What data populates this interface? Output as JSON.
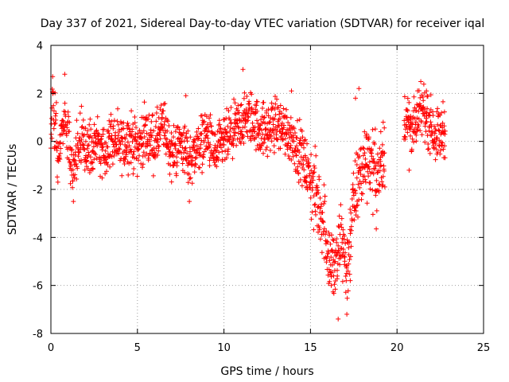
{
  "chart_data": {
    "type": "scatter",
    "title": "Day 337 of 2021, Sidereal Day-to-day VTEC variation (SDTVAR) for receiver iqal",
    "xlabel": "GPS time / hours",
    "ylabel": "SDTVAR / TECUs",
    "xlim": [
      0,
      25
    ],
    "ylim": [
      -8,
      4
    ],
    "xticks": [
      0,
      5,
      10,
      15,
      20,
      25
    ],
    "yticks": [
      4,
      2,
      0,
      -2,
      -4,
      -6,
      -8
    ],
    "xtick_labels": [
      "0",
      "5",
      "10",
      "15",
      "20",
      "25"
    ],
    "ytick_labels": [
      "4",
      "2",
      "0",
      "-2",
      "-4",
      "-6",
      "-8"
    ],
    "grid": true,
    "marker": "+",
    "color": "#ff0000",
    "series": [
      {
        "name": "iqal",
        "trend": [
          {
            "x": 0.0,
            "y": 0.3
          },
          {
            "x": 0.1,
            "y": 1.6
          },
          {
            "x": 0.2,
            "y": 0.9
          },
          {
            "x": 0.3,
            "y": 0.2
          },
          {
            "x": 0.4,
            "y": -0.6
          },
          {
            "x": 0.6,
            "y": 0.5
          },
          {
            "x": 0.8,
            "y": 1.0
          },
          {
            "x": 1.0,
            "y": 0.3
          },
          {
            "x": 1.2,
            "y": -1.2
          },
          {
            "x": 1.5,
            "y": -0.5
          },
          {
            "x": 1.8,
            "y": 0.2
          },
          {
            "x": 2.2,
            "y": -0.4
          },
          {
            "x": 2.6,
            "y": 0.1
          },
          {
            "x": 3.0,
            "y": -0.6
          },
          {
            "x": 3.5,
            "y": 0.2
          },
          {
            "x": 4.0,
            "y": -0.3
          },
          {
            "x": 4.5,
            "y": 0.1
          },
          {
            "x": 5.0,
            "y": -0.2
          },
          {
            "x": 5.5,
            "y": 0.3
          },
          {
            "x": 6.0,
            "y": -0.1
          },
          {
            "x": 6.5,
            "y": 0.7
          },
          {
            "x": 7.0,
            "y": -0.6
          },
          {
            "x": 7.5,
            "y": 0.0
          },
          {
            "x": 8.0,
            "y": -0.8
          },
          {
            "x": 8.5,
            "y": -0.2
          },
          {
            "x": 9.0,
            "y": 0.3
          },
          {
            "x": 9.5,
            "y": -0.6
          },
          {
            "x": 10.0,
            "y": 0.0
          },
          {
            "x": 10.5,
            "y": 0.3
          },
          {
            "x": 11.0,
            "y": 0.8
          },
          {
            "x": 11.5,
            "y": 1.0
          },
          {
            "x": 12.0,
            "y": 0.6
          },
          {
            "x": 12.5,
            "y": 0.4
          },
          {
            "x": 13.0,
            "y": 0.8
          },
          {
            "x": 13.5,
            "y": 0.5
          },
          {
            "x": 14.0,
            "y": 0.1
          },
          {
            "x": 14.5,
            "y": -0.6
          },
          {
            "x": 15.0,
            "y": -1.6
          },
          {
            "x": 15.4,
            "y": -2.5
          },
          {
            "x": 15.8,
            "y": -3.3
          },
          {
            "x": 16.1,
            "y": -5.0
          },
          {
            "x": 16.5,
            "y": -5.3
          },
          {
            "x": 16.8,
            "y": -3.8
          },
          {
            "x": 17.1,
            "y": -5.5
          },
          {
            "x": 17.4,
            "y": -3.0
          },
          {
            "x": 17.8,
            "y": -1.5
          },
          {
            "x": 18.3,
            "y": -0.5
          },
          {
            "x": 18.8,
            "y": -1.5
          },
          {
            "x": 19.2,
            "y": -1.0
          },
          {
            "x": 20.5,
            "y": 1.0
          },
          {
            "x": 21.0,
            "y": 0.5
          },
          {
            "x": 21.5,
            "y": 1.4
          },
          {
            "x": 22.0,
            "y": 0.6
          },
          {
            "x": 22.4,
            "y": 0.2
          },
          {
            "x": 22.8,
            "y": 0.6
          }
        ],
        "spikes": [
          {
            "x": 0.1,
            "y": 2.7
          },
          {
            "x": 0.8,
            "y": 2.8
          },
          {
            "x": 1.3,
            "y": -2.5
          },
          {
            "x": 11.1,
            "y": 3.0
          },
          {
            "x": 8.0,
            "y": -2.5
          },
          {
            "x": 16.2,
            "y": -6.0
          },
          {
            "x": 16.6,
            "y": -7.4
          },
          {
            "x": 17.1,
            "y": -7.2
          },
          {
            "x": 17.3,
            "y": -5.8
          },
          {
            "x": 17.6,
            "y": 1.8
          },
          {
            "x": 17.8,
            "y": 2.2
          },
          {
            "x": 21.7,
            "y": 2.1
          },
          {
            "x": 20.7,
            "y": -1.2
          },
          {
            "x": 19.2,
            "y": 0.8
          },
          {
            "x": 13.9,
            "y": 2.1
          },
          {
            "x": 7.8,
            "y": 1.9
          }
        ],
        "gaps": [
          [
            19.3,
            20.4
          ]
        ],
        "x_range": [
          0.0,
          22.9
        ]
      }
    ]
  }
}
